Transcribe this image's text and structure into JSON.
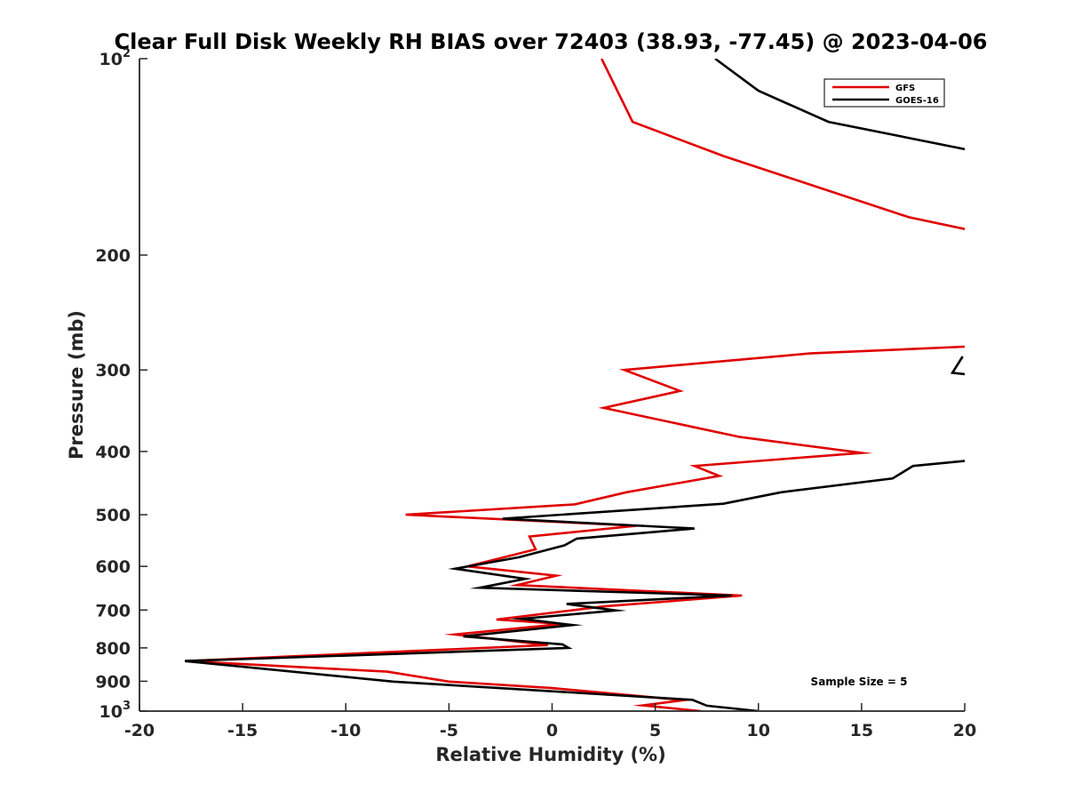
{
  "chart_data": {
    "type": "line",
    "title": "Clear Full Disk Weekly RH BIAS over 72403 (38.93, -77.45) @ 2023-04-06",
    "xlabel": "Relative Humidity (%)",
    "ylabel": "Pressure (mb)",
    "xlim": [
      -20,
      20
    ],
    "ylim": [
      100,
      1000
    ],
    "y_scale": "log",
    "y_reversed": true,
    "grid": false,
    "legend_position": "top-right",
    "x_ticks": [
      "-20",
      "-15",
      "-10",
      "-5",
      "0",
      "5",
      "10",
      "15",
      "20"
    ],
    "y_ticks": [
      {
        "value": 100,
        "base": "10",
        "exp": "2"
      },
      {
        "value": 200,
        "label": "200"
      },
      {
        "value": 300,
        "label": "300"
      },
      {
        "value": 400,
        "label": "400"
      },
      {
        "value": 500,
        "label": "500"
      },
      {
        "value": 600,
        "label": "600"
      },
      {
        "value": 700,
        "label": "700"
      },
      {
        "value": 800,
        "label": "800"
      },
      {
        "value": 900,
        "label": "900"
      },
      {
        "value": 1000,
        "base": "10",
        "exp": "3"
      }
    ],
    "annotation": "Sample Size = 5",
    "series": [
      {
        "name": "GFS",
        "color": "#e00000",
        "segments": [
          [
            [
              2.4,
              100
            ],
            [
              3.9,
              125
            ],
            [
              8.3,
              141
            ],
            [
              17.3,
              175
            ],
            [
              20.2,
              183
            ]
          ],
          [
            [
              20.4,
              276
            ],
            [
              12.5,
              283
            ],
            [
              3.5,
              300
            ],
            [
              6.2,
              323
            ],
            [
              2.5,
              343
            ],
            [
              9.1,
              380
            ],
            [
              15.0,
              402
            ],
            [
              6.9,
              421
            ],
            [
              8.1,
              436
            ],
            [
              3.6,
              462
            ],
            [
              1.1,
              482
            ],
            [
              -7.1,
              500
            ],
            [
              4.1,
              520
            ],
            [
              -1.1,
              540
            ],
            [
              -0.8,
              565
            ],
            [
              -4.1,
              600
            ],
            [
              0.2,
              620
            ],
            [
              -1.7,
              641
            ],
            [
              9.2,
              665
            ],
            [
              2.5,
              691
            ],
            [
              -2.7,
              724
            ],
            [
              0.5,
              735
            ],
            [
              -4.7,
              763
            ],
            [
              -0.2,
              792
            ],
            [
              -17.8,
              838
            ],
            [
              -8.0,
              870
            ],
            [
              -5.0,
              901
            ],
            [
              0.0,
              922
            ],
            [
              6.4,
              962
            ],
            [
              4.4,
              980
            ],
            [
              7.2,
              1000
            ]
          ]
        ]
      },
      {
        "name": "GOES-16",
        "color": "#000000",
        "segments": [
          [
            [
              7.9,
              100
            ],
            [
              10.0,
              112
            ],
            [
              13.4,
              125
            ],
            [
              20.2,
              138
            ]
          ],
          [
            [
              19.9,
              286
            ],
            [
              19.4,
              303
            ],
            [
              20.2,
              305
            ]
          ],
          [
            [
              20.2,
              413
            ],
            [
              17.5,
              421
            ],
            [
              16.5,
              440
            ],
            [
              11.1,
              462
            ],
            [
              8.3,
              481
            ],
            [
              -2.4,
              507
            ],
            [
              6.9,
              525
            ],
            [
              1.2,
              544
            ],
            [
              0.6,
              557
            ],
            [
              -1.6,
              581
            ],
            [
              -4.7,
              605
            ],
            [
              -1.3,
              627
            ],
            [
              -3.5,
              647
            ],
            [
              8.7,
              665
            ],
            [
              0.7,
              685
            ],
            [
              3.1,
              701
            ],
            [
              -1.5,
              722
            ],
            [
              1.0,
              738
            ],
            [
              -4.3,
              768
            ],
            [
              0.5,
              790
            ],
            [
              0.8,
              800
            ],
            [
              -17.8,
              838
            ],
            [
              -7.7,
              901
            ],
            [
              6.8,
              961
            ],
            [
              7.5,
              981
            ],
            [
              10.0,
              1000
            ]
          ]
        ]
      }
    ]
  }
}
